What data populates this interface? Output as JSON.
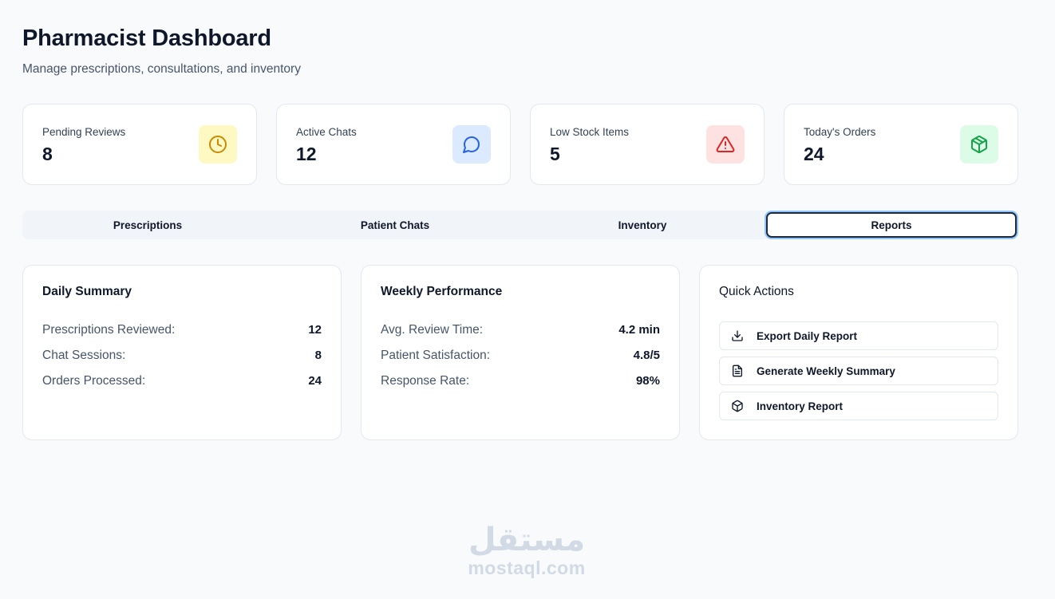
{
  "header": {
    "title": "Pharmacist Dashboard",
    "subtitle": "Manage prescriptions, consultations, and inventory"
  },
  "stats": [
    {
      "label": "Pending Reviews",
      "value": "8",
      "icon": "clock-icon",
      "bg": "#fef9c3",
      "color": "#ca8a04"
    },
    {
      "label": "Active Chats",
      "value": "12",
      "icon": "message-circle-icon",
      "bg": "#dbeafe",
      "color": "#2563eb"
    },
    {
      "label": "Low Stock Items",
      "value": "5",
      "icon": "alert-triangle-icon",
      "bg": "#fee2e2",
      "color": "#dc2626"
    },
    {
      "label": "Today's Orders",
      "value": "24",
      "icon": "package-icon",
      "bg": "#dcfce7",
      "color": "#16a34a"
    }
  ],
  "tabs": [
    {
      "label": "Prescriptions"
    },
    {
      "label": "Patient Chats"
    },
    {
      "label": "Inventory"
    },
    {
      "label": "Reports"
    }
  ],
  "active_tab": "Reports",
  "daily_summary": {
    "title": "Daily Summary",
    "rows": [
      {
        "label": "Prescriptions Reviewed:",
        "value": "12"
      },
      {
        "label": "Chat Sessions:",
        "value": "8"
      },
      {
        "label": "Orders Processed:",
        "value": "24"
      }
    ]
  },
  "weekly_performance": {
    "title": "Weekly Performance",
    "rows": [
      {
        "label": "Avg. Review Time:",
        "value": "4.2 min"
      },
      {
        "label": "Patient Satisfaction:",
        "value": "4.8/5"
      },
      {
        "label": "Response Rate:",
        "value": "98%"
      }
    ]
  },
  "quick_actions": {
    "title": "Quick Actions",
    "buttons": [
      {
        "label": "Export Daily Report",
        "icon": "download-icon"
      },
      {
        "label": "Generate Weekly Summary",
        "icon": "file-text-icon"
      },
      {
        "label": "Inventory Report",
        "icon": "package-icon"
      }
    ]
  },
  "watermark": {
    "logo": "مستقل",
    "url": "mostaql.com"
  }
}
